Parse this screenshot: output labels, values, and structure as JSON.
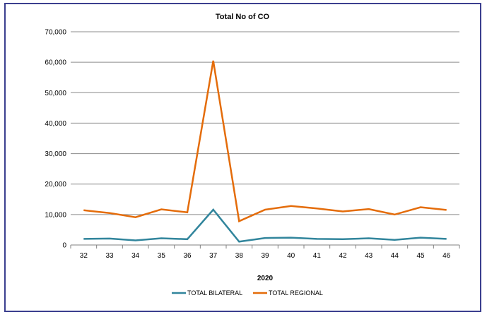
{
  "chart_data": {
    "type": "line",
    "title": "Total No of CO",
    "xlabel": "2020",
    "ylabel": "",
    "categories": [
      "32",
      "33",
      "34",
      "35",
      "36",
      "37",
      "38",
      "39",
      "40",
      "41",
      "42",
      "43",
      "44",
      "45",
      "46"
    ],
    "ylim": [
      0,
      70000
    ],
    "yticks": [
      0,
      10000,
      20000,
      30000,
      40000,
      50000,
      60000,
      70000
    ],
    "ytick_labels": [
      "0",
      "10,000",
      "20,000",
      "30,000",
      "40,000",
      "50,000",
      "60,000",
      "70,000"
    ],
    "grid": true,
    "legend": "bottom",
    "series": [
      {
        "name": "TOTAL BILATERAL",
        "color": "#31859c",
        "values": [
          2000,
          2100,
          1500,
          2200,
          1900,
          11600,
          1100,
          2300,
          2400,
          2000,
          1900,
          2200,
          1700,
          2400,
          2000
        ]
      },
      {
        "name": "TOTAL REGIONAL",
        "color": "#e46c0a",
        "values": [
          11400,
          10500,
          9100,
          11700,
          10700,
          60500,
          7800,
          11600,
          12800,
          12000,
          11000,
          11800,
          10000,
          12400,
          11500
        ]
      }
    ]
  }
}
